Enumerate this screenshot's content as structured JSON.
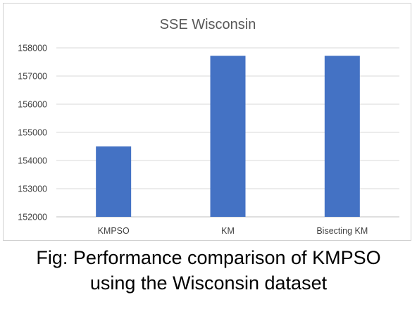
{
  "chart_data": {
    "type": "bar",
    "title": "SSE Wisconsin",
    "categories": [
      "KMPSO",
      "KM",
      "Bisecting KM"
    ],
    "values": [
      154500,
      157720,
      157720
    ],
    "ylim": [
      152000,
      158000
    ],
    "yticks": [
      152000,
      153000,
      154000,
      155000,
      156000,
      157000,
      158000
    ],
    "tick_labels": [
      "152000",
      "153000",
      "154000",
      "155000",
      "156000",
      "157000",
      "158000"
    ],
    "xlabel": "",
    "ylabel": "",
    "grid": true,
    "legend": "none",
    "colors": {
      "bar": "#4472c4",
      "grid": "#d9d9d9",
      "text": "#404040",
      "title": "#595959"
    }
  },
  "caption": {
    "line1": "Fig: Performance comparison of KMPSO",
    "line2": "using the Wisconsin dataset"
  }
}
